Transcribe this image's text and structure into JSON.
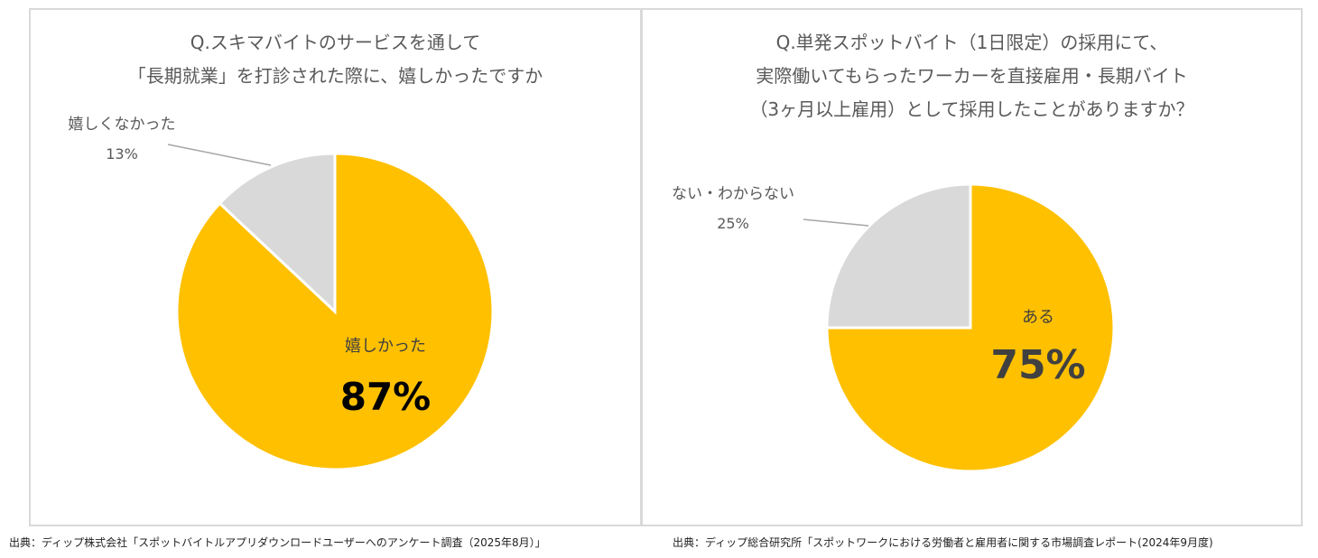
{
  "chart_data": [
    {
      "type": "pie",
      "title": [
        "Q.スキマバイトのサービスを通して",
        "「長期就業」を打診された際に、嬉しかったですか"
      ],
      "slices": [
        {
          "label": "嬉しかった",
          "value": 87,
          "value_label": "87%",
          "color": "#FFC000"
        },
        {
          "label": "嬉しくなかった",
          "value": 13,
          "value_label": "13%",
          "color": "#D9D9D9"
        }
      ],
      "source": "出典：ディップ株式会社「スポットバイトルアプリダウンロードユーザーへのアンケート調査（2025年8月）」"
    },
    {
      "type": "pie",
      "title": [
        "Q.単発スポットバイト（1日限定）の採用にて、",
        "実際働いてもらったワーカーを直接雇用・長期バイト",
        "（3ヶ月以上雇用）として採用したことがありますか？"
      ],
      "slices": [
        {
          "label": "ある",
          "value": 75,
          "value_label": "75%",
          "color": "#FFC000"
        },
        {
          "label": "ない・わからない",
          "value": 25,
          "value_label": "25%",
          "color": "#D9D9D9"
        }
      ],
      "source": "出典：ディップ総合研究所「スポットワークにおける労働者と雇用者に関する市場調査レポート(2024年9月度)"
    }
  ]
}
